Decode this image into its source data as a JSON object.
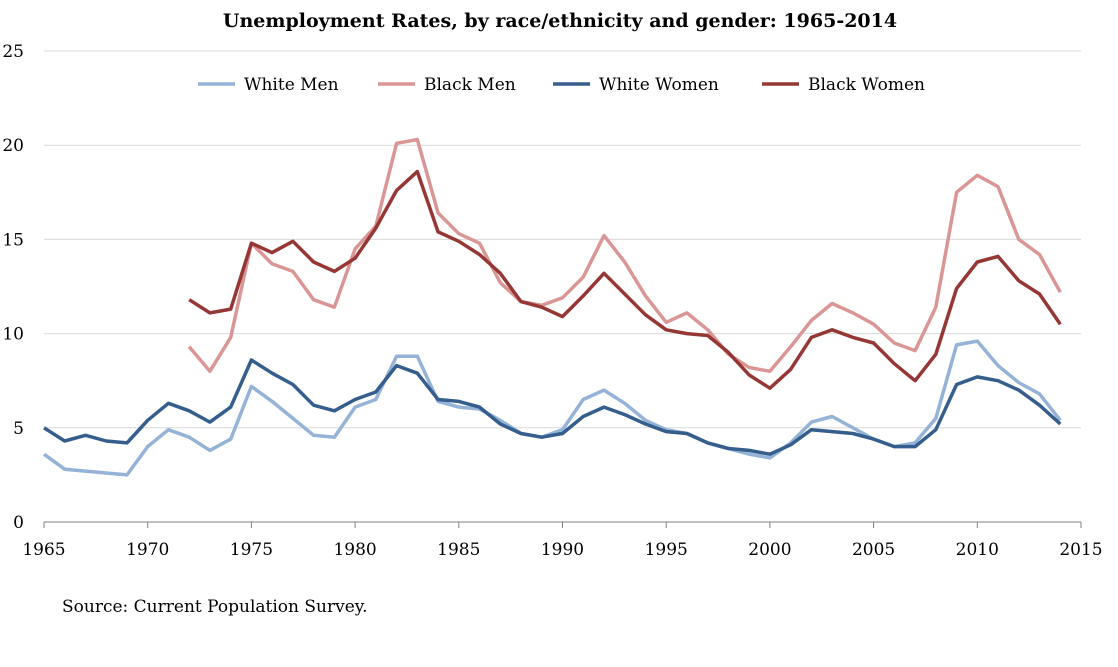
{
  "chart_data": {
    "type": "line",
    "title": "Unemployment Rates, by race/ethnicity and gender: 1965-2014",
    "xlabel": "",
    "ylabel": "",
    "xlim": [
      1965,
      2015
    ],
    "ylim": [
      0,
      25
    ],
    "x_ticks": [
      1965,
      1970,
      1975,
      1980,
      1985,
      1990,
      1995,
      2000,
      2005,
      2010,
      2015
    ],
    "y_ticks": [
      0,
      5,
      10,
      15,
      20,
      25
    ],
    "grid": "horizontal",
    "legend": "top",
    "series": [
      {
        "name": "White Men",
        "color": "#95b3d7",
        "x": [
          1965,
          1966,
          1967,
          1968,
          1969,
          1970,
          1971,
          1972,
          1973,
          1974,
          1975,
          1976,
          1977,
          1978,
          1979,
          1980,
          1981,
          1982,
          1983,
          1984,
          1985,
          1986,
          1987,
          1988,
          1989,
          1990,
          1991,
          1992,
          1993,
          1994,
          1995,
          1996,
          1997,
          1998,
          1999,
          2000,
          2001,
          2002,
          2003,
          2004,
          2005,
          2006,
          2007,
          2008,
          2009,
          2010,
          2011,
          2012,
          2013,
          2014
        ],
        "values": [
          3.6,
          2.8,
          2.7,
          2.6,
          2.5,
          4.0,
          4.9,
          4.5,
          3.8,
          4.4,
          7.2,
          6.4,
          5.5,
          4.6,
          4.5,
          6.1,
          6.5,
          8.8,
          8.8,
          6.4,
          6.1,
          6.0,
          5.4,
          4.7,
          4.5,
          4.9,
          6.5,
          7.0,
          6.3,
          5.4,
          4.9,
          4.7,
          4.2,
          3.9,
          3.6,
          3.4,
          4.2,
          5.3,
          5.6,
          5.0,
          4.4,
          4.0,
          4.2,
          5.5,
          9.4,
          9.6,
          8.3,
          7.4,
          6.8,
          5.4
        ]
      },
      {
        "name": "Black Men",
        "color": "#d99694",
        "x": [
          1972,
          1973,
          1974,
          1975,
          1976,
          1977,
          1978,
          1979,
          1980,
          1981,
          1982,
          1983,
          1984,
          1985,
          1986,
          1987,
          1988,
          1989,
          1990,
          1991,
          1992,
          1993,
          1994,
          1995,
          1996,
          1997,
          1998,
          1999,
          2000,
          2001,
          2002,
          2003,
          2004,
          2005,
          2006,
          2007,
          2008,
          2009,
          2010,
          2011,
          2012,
          2013,
          2014
        ],
        "values": [
          9.3,
          8.0,
          9.8,
          14.8,
          13.7,
          13.3,
          11.8,
          11.4,
          14.5,
          15.7,
          20.1,
          20.3,
          16.4,
          15.3,
          14.8,
          12.7,
          11.7,
          11.5,
          11.9,
          13.0,
          15.2,
          13.8,
          12.0,
          10.6,
          11.1,
          10.2,
          8.9,
          8.2,
          8.0,
          9.3,
          10.7,
          11.6,
          11.1,
          10.5,
          9.5,
          9.1,
          11.4,
          17.5,
          18.4,
          17.8,
          15.0,
          14.2,
          12.2
        ]
      },
      {
        "name": "White Women",
        "color": "#355e8d",
        "x": [
          1965,
          1966,
          1967,
          1968,
          1969,
          1970,
          1971,
          1972,
          1973,
          1974,
          1975,
          1976,
          1977,
          1978,
          1979,
          1980,
          1981,
          1982,
          1983,
          1984,
          1985,
          1986,
          1987,
          1988,
          1989,
          1990,
          1991,
          1992,
          1993,
          1994,
          1995,
          1996,
          1997,
          1998,
          1999,
          2000,
          2001,
          2002,
          2003,
          2004,
          2005,
          2006,
          2007,
          2008,
          2009,
          2010,
          2011,
          2012,
          2013,
          2014
        ],
        "values": [
          5.0,
          4.3,
          4.6,
          4.3,
          4.2,
          5.4,
          6.3,
          5.9,
          5.3,
          6.1,
          8.6,
          7.9,
          7.3,
          6.2,
          5.9,
          6.5,
          6.9,
          8.3,
          7.9,
          6.5,
          6.4,
          6.1,
          5.2,
          4.7,
          4.5,
          4.7,
          5.6,
          6.1,
          5.7,
          5.2,
          4.8,
          4.7,
          4.2,
          3.9,
          3.8,
          3.6,
          4.1,
          4.9,
          4.8,
          4.7,
          4.4,
          4.0,
          4.0,
          4.9,
          7.3,
          7.7,
          7.5,
          7.0,
          6.2,
          5.2
        ]
      },
      {
        "name": "Black Women",
        "color": "#953735",
        "x": [
          1972,
          1973,
          1974,
          1975,
          1976,
          1977,
          1978,
          1979,
          1980,
          1981,
          1982,
          1983,
          1984,
          1985,
          1986,
          1987,
          1988,
          1989,
          1990,
          1991,
          1992,
          1993,
          1994,
          1995,
          1996,
          1997,
          1998,
          1999,
          2000,
          2001,
          2002,
          2003,
          2004,
          2005,
          2006,
          2007,
          2008,
          2009,
          2010,
          2011,
          2012,
          2013,
          2014
        ],
        "values": [
          11.8,
          11.1,
          11.3,
          14.8,
          14.3,
          14.9,
          13.8,
          13.3,
          14.0,
          15.6,
          17.6,
          18.6,
          15.4,
          14.9,
          14.2,
          13.2,
          11.7,
          11.4,
          10.9,
          12.0,
          13.2,
          12.1,
          11.0,
          10.2,
          10.0,
          9.9,
          9.0,
          7.8,
          7.1,
          8.1,
          9.8,
          10.2,
          9.8,
          9.5,
          8.4,
          7.5,
          8.9,
          12.4,
          13.8,
          14.1,
          12.8,
          12.1,
          10.5
        ]
      }
    ]
  },
  "source_note": "Source: Current Population Survey."
}
